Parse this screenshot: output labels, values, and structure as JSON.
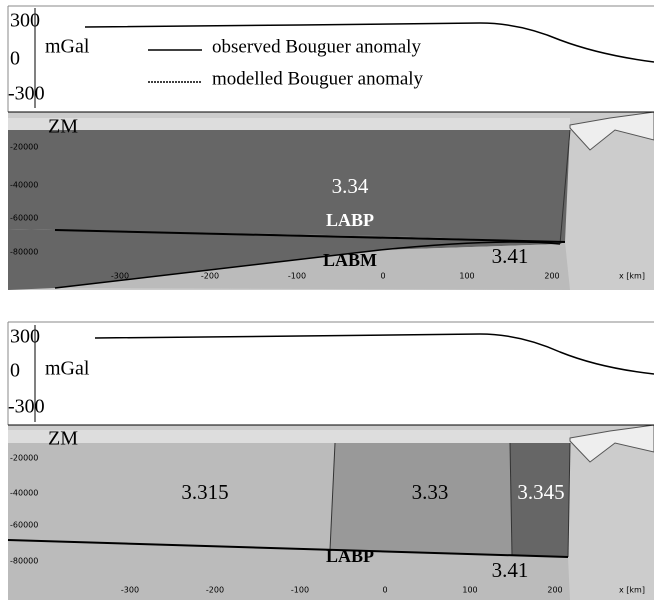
{
  "panels": [
    {
      "gravity": {
        "ticks": [
          "300",
          "0",
          "-300"
        ],
        "unit": "mGal",
        "legend": [
          "observed Bouguer anomaly",
          "modelled Bouguer anomaly"
        ]
      },
      "depth_ticks": [
        "-20000",
        "-40000",
        "-60000",
        "-80000"
      ],
      "x_ticks": [
        "-300",
        "-200",
        "-100",
        "0",
        "100",
        "200",
        "x [km]"
      ],
      "labels": {
        "moho": "ZM",
        "lab_p": "LABP",
        "lab_m": "LABM"
      },
      "densities": [
        "3.34",
        "3.41"
      ]
    },
    {
      "gravity": {
        "ticks": [
          "300",
          "0",
          "-300"
        ],
        "unit": "mGal"
      },
      "depth_ticks": [
        "-20000",
        "-40000",
        "-60000",
        "-80000"
      ],
      "x_ticks": [
        "-300",
        "-200",
        "-100",
        "0",
        "100",
        "200",
        "x [km]"
      ],
      "labels": {
        "moho": "ZM",
        "lab_p": "LABP"
      },
      "densities": [
        "3.315",
        "3.33",
        "3.345",
        "3.41"
      ]
    }
  ]
}
